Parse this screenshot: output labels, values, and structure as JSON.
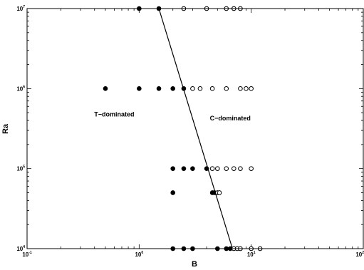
{
  "chart_data": {
    "type": "scatter",
    "title": "",
    "xlabel": "B",
    "ylabel": "Ra",
    "xscale": "log",
    "yscale": "log",
    "xlim": [
      0.1,
      100
    ],
    "ylim": [
      10000,
      10000000
    ],
    "grid": false,
    "x_ticks": [
      {
        "base": "10",
        "exp": "-1"
      },
      {
        "base": "10",
        "exp": "0"
      },
      {
        "base": "10",
        "exp": "1"
      },
      {
        "base": "10",
        "exp": "2"
      }
    ],
    "y_ticks": [
      {
        "base": "10",
        "exp": "4"
      },
      {
        "base": "10",
        "exp": "5"
      },
      {
        "base": "10",
        "exp": "6"
      },
      {
        "base": "10",
        "exp": "7"
      }
    ],
    "annotations": [
      {
        "text": "T−dominated",
        "x": 0.6,
        "y": 450000
      },
      {
        "text": "C−dominated",
        "x": 6.5,
        "y": 400000
      }
    ],
    "series": [
      {
        "marker": "filled-circle",
        "points": [
          [
            1.0,
            10000000
          ],
          [
            1.5,
            10000000
          ],
          [
            0.5,
            1000000
          ],
          [
            1.0,
            1000000
          ],
          [
            1.5,
            1000000
          ],
          [
            2.0,
            1000000
          ],
          [
            2.5,
            1000000
          ],
          [
            2.0,
            100000
          ],
          [
            2.5,
            100000
          ],
          [
            3.0,
            100000
          ],
          [
            4.0,
            100000
          ],
          [
            2.0,
            50000
          ],
          [
            4.5,
            50000
          ],
          [
            4.7,
            50000
          ],
          [
            2.0,
            10000
          ],
          [
            2.5,
            10000
          ],
          [
            3.0,
            10000
          ],
          [
            5.0,
            10000
          ],
          [
            6.0,
            10000
          ],
          [
            6.5,
            10000
          ]
        ]
      },
      {
        "marker": "open-circle",
        "points": [
          [
            2.5,
            10000000
          ],
          [
            4.0,
            10000000
          ],
          [
            6.0,
            10000000
          ],
          [
            7.0,
            10000000
          ],
          [
            8.0,
            10000000
          ],
          [
            3.0,
            1000000
          ],
          [
            3.5,
            1000000
          ],
          [
            4.5,
            1000000
          ],
          [
            6.0,
            1000000
          ],
          [
            8.0,
            1000000
          ],
          [
            9.0,
            1000000
          ],
          [
            10.0,
            1000000
          ],
          [
            4.5,
            100000
          ],
          [
            5.0,
            100000
          ],
          [
            6.0,
            100000
          ],
          [
            7.0,
            100000
          ],
          [
            8.0,
            100000
          ],
          [
            10.0,
            100000
          ],
          [
            5.0,
            50000
          ],
          [
            5.2,
            50000
          ],
          [
            7.0,
            10000
          ],
          [
            7.5,
            10000
          ],
          [
            8.0,
            10000
          ],
          [
            10.0,
            10000
          ],
          [
            12.0,
            10000
          ]
        ]
      },
      {
        "type": "line",
        "points": [
          [
            1.5,
            10000000
          ],
          [
            6.8,
            10000
          ]
        ]
      }
    ]
  }
}
